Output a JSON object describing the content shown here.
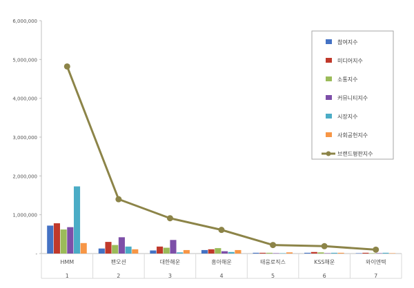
{
  "chart_data": {
    "type": "bar",
    "categories": [
      "HMM",
      "팬오션",
      "대한해운",
      "흥아해운",
      "태웅로직스",
      "KSS해운",
      "와이엔텍"
    ],
    "category_numbers": [
      "1",
      "2",
      "3",
      "4",
      "5",
      "6",
      "7"
    ],
    "ylim": [
      0,
      6000000
    ],
    "yticks": [
      0,
      1000000,
      2000000,
      3000000,
      4000000,
      5000000,
      6000000
    ],
    "ytick_labels": [
      "-",
      "1,000,000",
      "2,000,000",
      "3,000,000",
      "4,000,000",
      "5,000,000",
      "6,000,000"
    ],
    "grid": false,
    "legend_position": "top-right",
    "series": [
      {
        "name": "참여지수",
        "kind": "bar",
        "color": "#4472C4",
        "values": [
          720000,
          130000,
          80000,
          90000,
          20000,
          20000,
          10000
        ]
      },
      {
        "name": "미디어지수",
        "kind": "bar",
        "color": "#C0392B",
        "values": [
          780000,
          300000,
          180000,
          110000,
          20000,
          40000,
          20000
        ]
      },
      {
        "name": "소통지수",
        "kind": "bar",
        "color": "#9BBB59",
        "values": [
          620000,
          220000,
          150000,
          140000,
          20000,
          30000,
          10000
        ]
      },
      {
        "name": "커뮤니티지수",
        "kind": "bar",
        "color": "#7D4FA8",
        "values": [
          680000,
          420000,
          350000,
          60000,
          10000,
          10000,
          10000
        ]
      },
      {
        "name": "시장지수",
        "kind": "bar",
        "color": "#4BACC6",
        "values": [
          1730000,
          180000,
          30000,
          40000,
          10000,
          20000,
          20000
        ]
      },
      {
        "name": "사회공헌지수",
        "kind": "bar",
        "color": "#F79646",
        "values": [
          270000,
          110000,
          90000,
          90000,
          30000,
          20000,
          10000
        ]
      },
      {
        "name": "브랜드평판지수",
        "kind": "line",
        "color": "#8C8448",
        "values": [
          4820000,
          1400000,
          910000,
          610000,
          220000,
          190000,
          100000
        ]
      }
    ]
  }
}
